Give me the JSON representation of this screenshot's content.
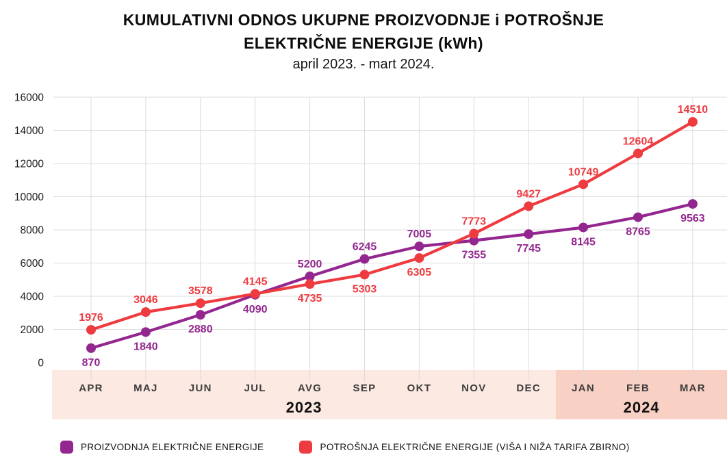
{
  "title": {
    "line1": "KUMULATIVNI ODNOS UKUPNE PROIZVODNJE i POTROŠNJE",
    "line2": "ELEKTRIČNE ENERGIJE (kWh)",
    "subtitle": "april 2023. - mart 2024."
  },
  "colors": {
    "production": "#93278f",
    "consumption": "#ee3b40",
    "gridline": "#dcdcdc",
    "band_2023": "#fce9e2",
    "band_2024": "#f8d0c4",
    "month_label": "#3d3d3d",
    "year_label": "#111111",
    "axis_label": "#1c1c1c",
    "background": "#ffffff"
  },
  "chart_data": {
    "type": "line",
    "title": "KUMULATIVNI ODNOS UKUPNE PROIZVODNJE i POTROŠNJE ELEKTRIČNE ENERGIJE (kWh)",
    "subtitle": "april 2023. - mart 2024.",
    "categories": [
      "APR",
      "MAJ",
      "JUN",
      "JUL",
      "AVG",
      "SEP",
      "OKT",
      "NOV",
      "DEC",
      "JAN",
      "FEB",
      "MAR"
    ],
    "series": [
      {
        "name": "PROIZVODNJA ELEKTRIČNE ENERGIJE",
        "color": "#93278f",
        "values": [
          870,
          1840,
          2880,
          4090,
          5200,
          6245,
          7005,
          7355,
          7745,
          8145,
          8765,
          9563
        ]
      },
      {
        "name": "POTROŠNJA ELEKTRIČNE ENERGIJE (VIŠA I NIŽA TARIFA ZBIRNO)",
        "color": "#ee3b40",
        "values": [
          1976,
          3046,
          3578,
          4145,
          4735,
          5303,
          6305,
          7773,
          9427,
          10749,
          12604,
          14510
        ]
      }
    ],
    "xlabel": "",
    "ylabel": "",
    "ylim": [
      0,
      16000
    ],
    "ytick_step": 2000,
    "yticks": [
      0,
      2000,
      4000,
      6000,
      8000,
      10000,
      12000,
      14000,
      16000
    ],
    "grid": true,
    "data_labels": true,
    "legend_position": "bottom",
    "year_bands": [
      {
        "label": "2023",
        "from_index": 0,
        "to_index": 8,
        "color": "#fce9e2"
      },
      {
        "label": "2024",
        "from_index": 9,
        "to_index": 11,
        "color": "#f8d0c4"
      }
    ]
  },
  "legend": {
    "items": [
      {
        "label": "PROIZVODNJA ELEKTRIČNE ENERGIJE",
        "color": "#93278f"
      },
      {
        "label": "POTROŠNJA ELEKTRIČNE ENERGIJE (VIŠA I NIŽA TARIFA ZBIRNO)",
        "color": "#ee3b40"
      }
    ]
  }
}
